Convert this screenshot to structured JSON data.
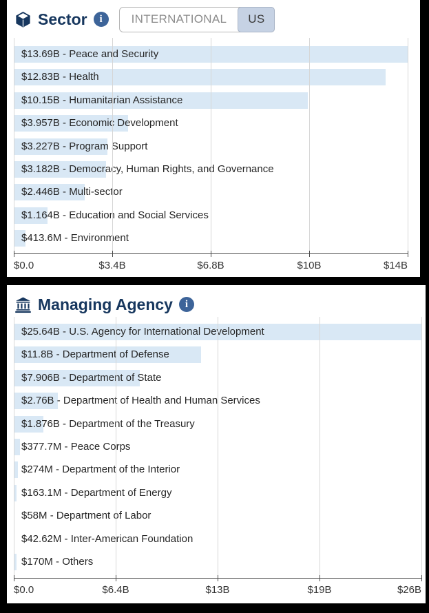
{
  "colors": {
    "page_background": "#000000",
    "panel_background": "#ffffff",
    "title_navy": "#17375e",
    "info_badge_blue": "#3d6499",
    "bar_fill": "#d9e8f5",
    "selected_toggle_bg": "#c6d2e4",
    "gridline": "#d6d6d6",
    "axis": "#4a4a4a"
  },
  "sector_panel": {
    "title": "Sector",
    "icon": "cube-icon",
    "info_icon": "i",
    "toggle": {
      "options": [
        {
          "label": "INTERNATIONAL",
          "selected": false
        },
        {
          "label": "US",
          "selected": true
        }
      ]
    }
  },
  "agency_panel": {
    "title": "Managing Agency",
    "icon": "landmark-icon",
    "info_icon": "i"
  },
  "chart_data": [
    {
      "type": "bar",
      "orientation": "horizontal",
      "title": "Sector",
      "bar_color": "#d9e8f5",
      "grid": true,
      "unit": "USD billions",
      "categories": [
        "Peace and Security",
        "Health",
        "Humanitarian Assistance",
        "Economic Development",
        "Program Support",
        "Democracy, Human Rights, and Governance",
        "Multi-sector",
        "Education and Social Services",
        "Environment"
      ],
      "values": [
        13.69,
        12.83,
        10.15,
        3.957,
        3.227,
        3.182,
        2.446,
        1.164,
        0.4136
      ],
      "bar_labels": [
        "$13.69B - Peace and Security",
        "$12.83B - Health",
        "$10.15B - Humanitarian Assistance",
        "$3.957B - Economic Development",
        "$3.227B - Program Support",
        "$3.182B - Democracy, Human Rights, and Governance",
        "$2.446B - Multi-sector",
        "$1.164B - Education and Social Services",
        "$413.6M - Environment"
      ],
      "x_tick_labels": [
        "$0.0",
        "$3.4B",
        "$6.8B",
        "$10B",
        "$14B"
      ],
      "xlim": [
        0,
        13.6
      ]
    },
    {
      "type": "bar",
      "orientation": "horizontal",
      "title": "Managing Agency",
      "bar_color": "#d9e8f5",
      "grid": true,
      "unit": "USD billions",
      "categories": [
        "U.S. Agency for International Development",
        "Department of Defense",
        "Department of State",
        "Department of Health and Human Services",
        "Department of the Treasury",
        "Peace Corps",
        "Department of the Interior",
        "Department of Energy",
        "Department of Labor",
        "Inter-American Foundation",
        "Others"
      ],
      "values": [
        25.64,
        11.8,
        7.906,
        2.76,
        1.876,
        0.3777,
        0.274,
        0.1631,
        0.058,
        0.04262,
        0.17
      ],
      "bar_labels": [
        "$25.64B - U.S. Agency for International Development",
        "$11.8B - Department of Defense",
        "$7.906B - Department of State",
        "$2.76B - Department of Health and Human Services",
        "$1.876B - Department of the Treasury",
        "$377.7M - Peace Corps",
        "$274M - Department of the Interior",
        "$163.1M - Department of Energy",
        "$58M - Department of Labor",
        "$42.62M - Inter-American Foundation",
        "$170M - Others"
      ],
      "x_tick_labels": [
        "$0.0",
        "$6.4B",
        "$13B",
        "$19B",
        "$26B"
      ],
      "xlim": [
        0,
        25.64
      ]
    }
  ]
}
